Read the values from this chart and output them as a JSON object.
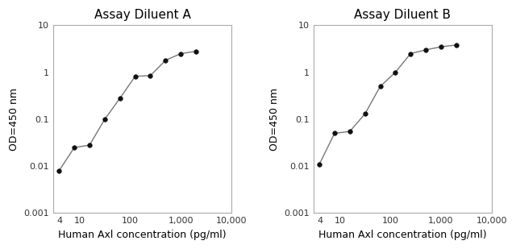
{
  "panel_A": {
    "title": "Assay Diluent A",
    "x": [
      3.9,
      7.8,
      15.6,
      31.25,
      62.5,
      125,
      250,
      500,
      1000,
      2000
    ],
    "y": [
      0.008,
      0.025,
      0.028,
      0.1,
      0.28,
      0.82,
      0.85,
      1.8,
      2.5,
      2.8
    ]
  },
  "panel_B": {
    "title": "Assay Diluent B",
    "x": [
      3.9,
      7.8,
      15.6,
      31.25,
      62.5,
      125,
      250,
      500,
      1000,
      2000
    ],
    "y": [
      0.011,
      0.05,
      0.055,
      0.13,
      0.5,
      1.0,
      2.5,
      3.0,
      3.5,
      3.8
    ]
  },
  "xlabel": "Human Axl concentration (pg/ml)",
  "ylabel": "OD=450 nm",
  "xlim": [
    3,
    10000
  ],
  "ylim": [
    0.001,
    10
  ],
  "xticks": [
    4,
    10,
    100,
    1000,
    10000
  ],
  "xtick_labels": [
    "4",
    "10",
    "100",
    "1,000",
    "10,000"
  ],
  "yticks": [
    0.001,
    0.01,
    0.1,
    1,
    10
  ],
  "ytick_labels": [
    "0.001",
    "0.01",
    "0.1",
    "1",
    "10"
  ],
  "line_color": "#777777",
  "marker": "o",
  "marker_color": "#111111",
  "marker_size": 4,
  "bg_color": "#ffffff",
  "title_fontsize": 11,
  "title_fontweight": "normal",
  "label_fontsize": 9,
  "tick_fontsize": 8
}
